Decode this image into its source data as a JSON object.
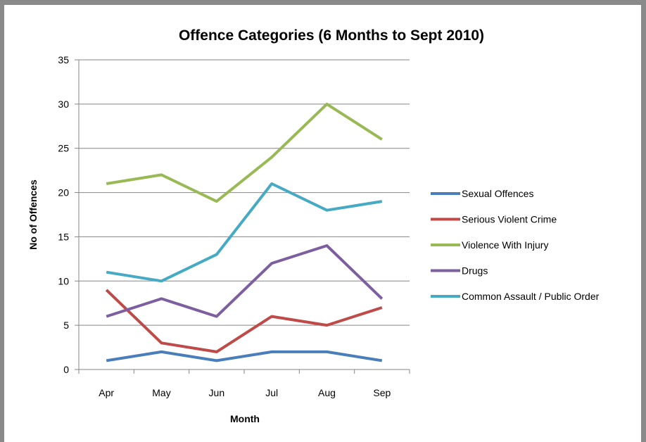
{
  "chart_data": {
    "type": "line",
    "title": "Offence Categories (6 Months to Sept 2010)",
    "xlabel": "Month",
    "ylabel": "No of Offences",
    "categories": [
      "Apr",
      "May",
      "Jun",
      "Jul",
      "Aug",
      "Sep"
    ],
    "ylim": [
      0,
      35
    ],
    "yticks": [
      0,
      5,
      10,
      15,
      20,
      25,
      30,
      35
    ],
    "grid": true,
    "legend_position": "right",
    "series": [
      {
        "name": "Sexual Offences",
        "color": "#4a7ebb",
        "values": [
          1,
          2,
          1,
          2,
          2,
          1
        ]
      },
      {
        "name": "Serious Violent Crime",
        "color": "#be4b48",
        "values": [
          9,
          3,
          2,
          6,
          5,
          7
        ]
      },
      {
        "name": "Violence With Injury",
        "color": "#98b954",
        "values": [
          21,
          22,
          19,
          24,
          30,
          26
        ]
      },
      {
        "name": "Drugs",
        "color": "#7d5fa0",
        "values": [
          6,
          8,
          6,
          12,
          14,
          8
        ]
      },
      {
        "name": "Common Assault / Public Order",
        "color": "#46aac5",
        "values": [
          11,
          10,
          13,
          21,
          18,
          19
        ]
      }
    ]
  }
}
